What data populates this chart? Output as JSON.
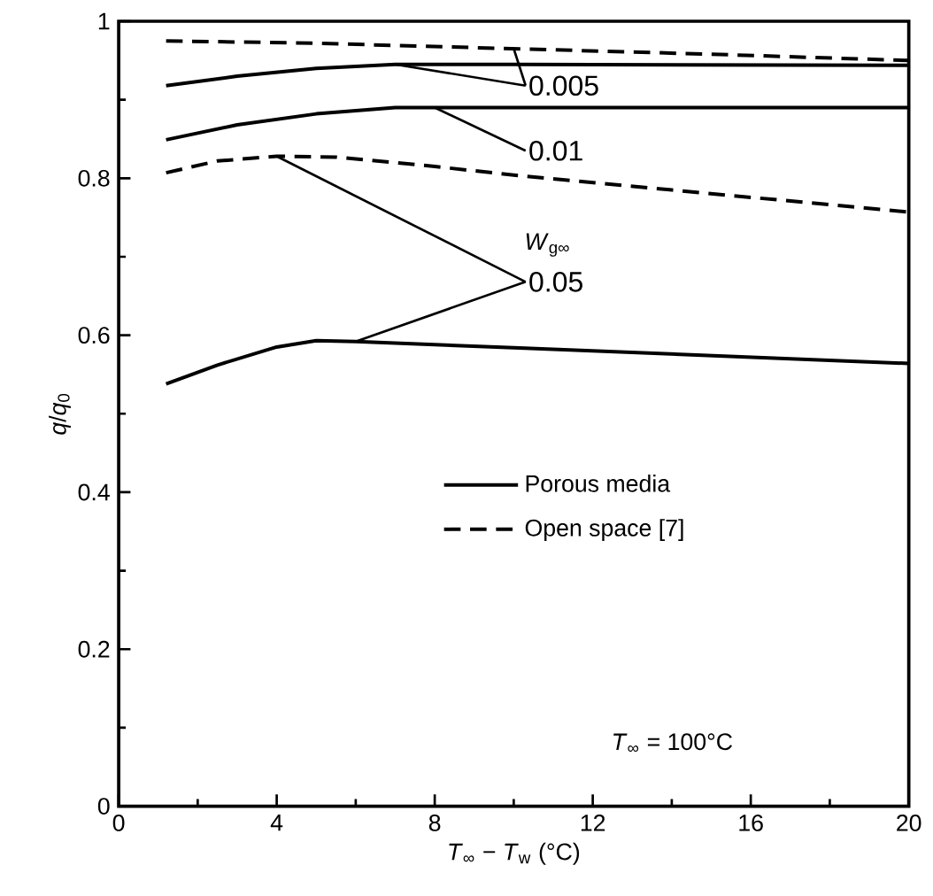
{
  "chart_data": {
    "type": "line",
    "xlabel": "*T*$_{∞}$ − *T*$_{w}$  (°C)",
    "ylabel": "*q*/*q*$_{0}$",
    "xlim": [
      0,
      20
    ],
    "ylim": [
      0,
      1
    ],
    "xticks": [
      0,
      4,
      8,
      12,
      16,
      20
    ],
    "yticks": [
      0,
      0.2,
      0.4,
      0.6,
      0.8,
      1
    ],
    "legend": "right",
    "grid": false,
    "series": [
      {
        "name": "Porous media",
        "line_style": "solid",
        "color": "#000000",
        "x": [
          1.2,
          3,
          5,
          7,
          10,
          20
        ],
        "values": [
          0.918,
          0.93,
          0.94,
          0.945,
          0.945,
          0.944
        ]
      },
      {
        "name": "Open space [7]",
        "line_style": "dashed",
        "color": "#000000",
        "x": [
          1.2,
          5,
          10,
          15,
          20
        ],
        "values": [
          0.975,
          0.972,
          0.965,
          0.958,
          0.95
        ]
      },
      {
        "line_style": "solid",
        "color": "#000000",
        "x": [
          1.2,
          3,
          5,
          7,
          10,
          20
        ],
        "values": [
          0.849,
          0.868,
          0.882,
          0.89,
          0.89,
          0.89
        ]
      },
      {
        "line_style": "dashed",
        "color": "#000000",
        "x": [
          1.2,
          2.5,
          4,
          5.5,
          8,
          10,
          14,
          20
        ],
        "values": [
          0.807,
          0.822,
          0.828,
          0.827,
          0.815,
          0.804,
          0.785,
          0.757
        ]
      },
      {
        "line_style": "solid",
        "color": "#000000",
        "x": [
          1.2,
          2.5,
          4,
          5,
          6,
          10,
          15,
          20
        ],
        "values": [
          0.538,
          0.562,
          0.585,
          0.593,
          0.592,
          0.584,
          0.574,
          0.564
        ]
      }
    ],
    "annotations": [
      {
        "text": "0.005",
        "x": 7,
        "y": 0.945
      },
      {
        "text": "0.01",
        "x": 8,
        "y": 0.89
      },
      "*W*$_{g∞}$",
      {
        "text": "0.05",
        "x": 6,
        "y": 0.592
      },
      "*T*$_{∞}$ = 100°C"
    ]
  }
}
